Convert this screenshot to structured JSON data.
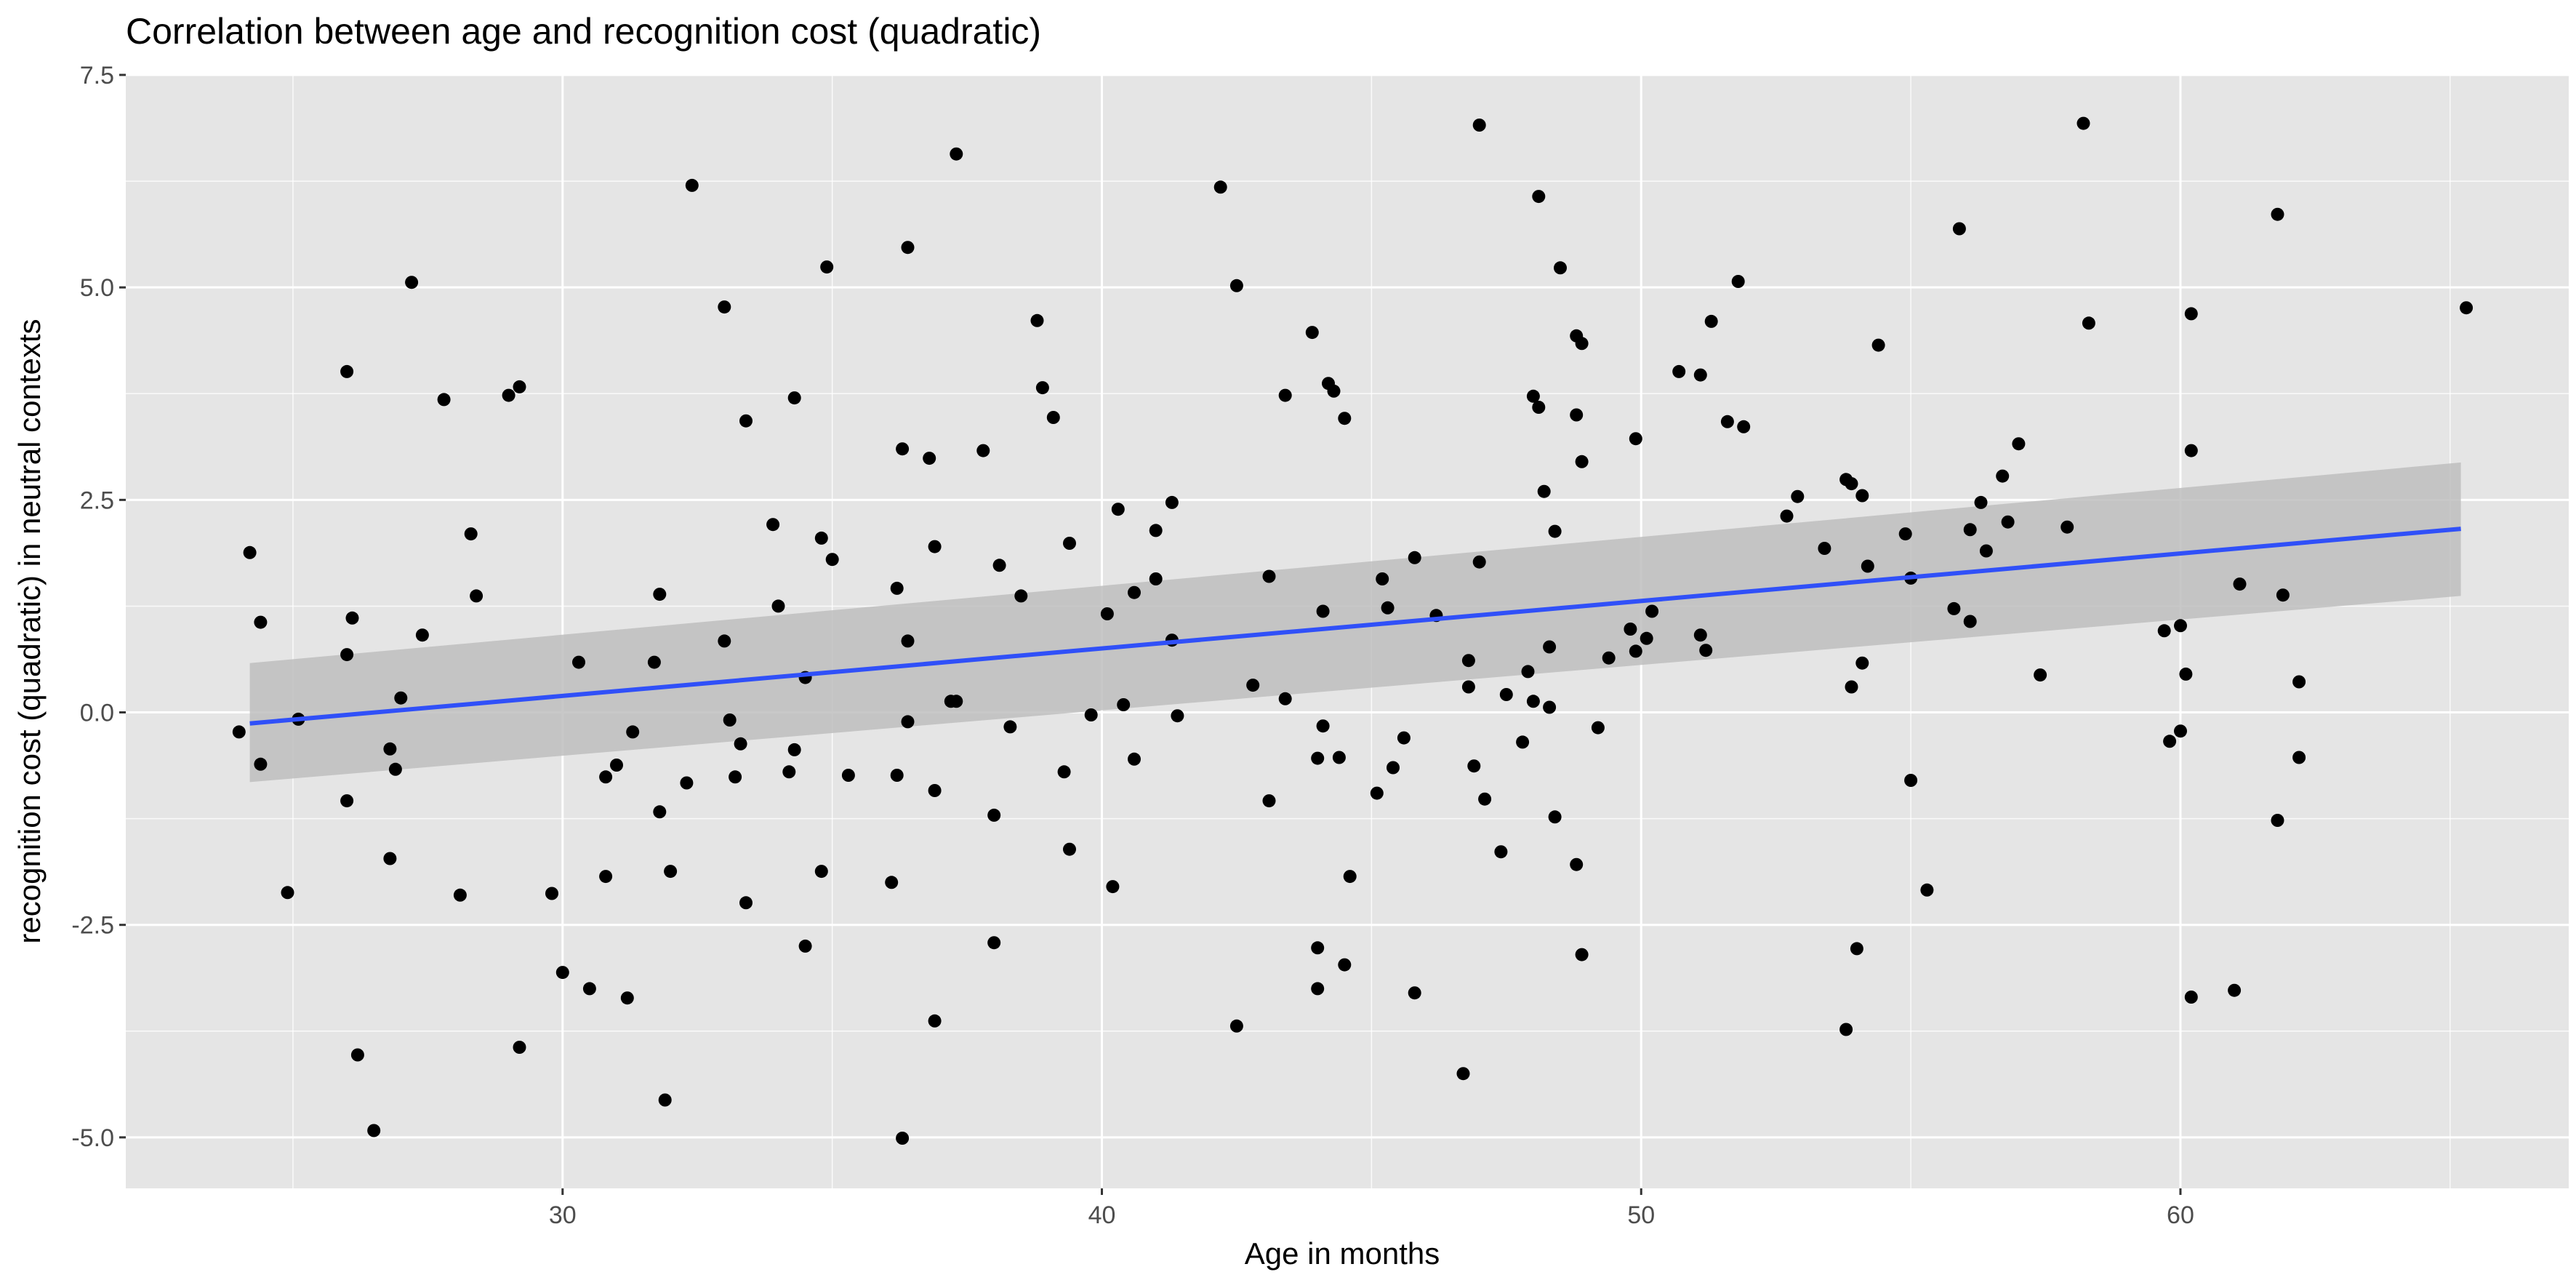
{
  "chart_data": {
    "type": "scatter",
    "title": "Correlation between age and recognition cost (quadratic)",
    "xlabel": "Age in months",
    "ylabel": "recognition cost (quadratic) in neutral contexts",
    "xlim": [
      21.9,
      67.2
    ],
    "ylim": [
      -5.6,
      7.5
    ],
    "x_ticks": [
      30,
      40,
      50,
      60
    ],
    "x_tick_labels": [
      "30",
      "40",
      "50",
      "60"
    ],
    "y_ticks": [
      -5,
      -2.5,
      0,
      2.5,
      5,
      7.5
    ],
    "y_tick_labels": [
      "-5.0",
      "-2.5",
      "0.0",
      "2.5",
      "5.0",
      "7.5"
    ],
    "grid": true,
    "legend": "none",
    "colors": {
      "panel_background": "#e5e5e5",
      "grid_major": "#ffffff",
      "points": "#000000",
      "fit_line": "#3050f8",
      "confidence_band": "#bebebe"
    },
    "fit": {
      "method": "linear regression with confidence band",
      "x": [
        24.2,
        65.2
      ],
      "y": [
        -0.13,
        2.16
      ],
      "band_lower": [
        -0.82,
        1.37
      ],
      "band_upper": [
        0.58,
        2.94
      ]
    },
    "points": [
      [
        24.0,
        -0.23
      ],
      [
        24.2,
        1.88
      ],
      [
        24.4,
        -0.61
      ],
      [
        24.4,
        1.06
      ],
      [
        24.9,
        -2.12
      ],
      [
        25.1,
        -0.08
      ],
      [
        26.0,
        4.01
      ],
      [
        26.0,
        -1.04
      ],
      [
        26.0,
        0.68
      ],
      [
        26.1,
        1.11
      ],
      [
        26.2,
        -4.03
      ],
      [
        26.5,
        -4.92
      ],
      [
        26.8,
        -1.72
      ],
      [
        26.8,
        -0.43
      ],
      [
        26.9,
        -0.67
      ],
      [
        27.0,
        0.17
      ],
      [
        27.2,
        5.06
      ],
      [
        27.4,
        0.91
      ],
      [
        27.8,
        3.68
      ],
      [
        28.1,
        -2.15
      ],
      [
        28.3,
        2.1
      ],
      [
        28.4,
        1.37
      ],
      [
        29.0,
        3.73
      ],
      [
        29.2,
        3.83
      ],
      [
        29.2,
        -3.94
      ],
      [
        29.8,
        -2.13
      ],
      [
        30.0,
        -3.06
      ],
      [
        30.3,
        0.59
      ],
      [
        30.5,
        -3.25
      ],
      [
        30.8,
        -1.93
      ],
      [
        30.8,
        -0.76
      ],
      [
        31.0,
        -0.62
      ],
      [
        31.2,
        -3.36
      ],
      [
        31.3,
        -0.23
      ],
      [
        31.7,
        0.59
      ],
      [
        31.8,
        1.39
      ],
      [
        31.8,
        -1.17
      ],
      [
        31.9,
        -4.56
      ],
      [
        32.0,
        -1.87
      ],
      [
        32.3,
        -0.83
      ],
      [
        32.4,
        6.2
      ],
      [
        33.0,
        0.84
      ],
      [
        33.0,
        4.77
      ],
      [
        33.1,
        -0.09
      ],
      [
        33.2,
        -0.76
      ],
      [
        33.3,
        -0.37
      ],
      [
        33.4,
        3.43
      ],
      [
        33.4,
        -2.24
      ],
      [
        33.9,
        2.21
      ],
      [
        34.0,
        1.25
      ],
      [
        34.2,
        -0.7
      ],
      [
        34.3,
        3.7
      ],
      [
        34.3,
        -0.44
      ],
      [
        34.5,
        0.41
      ],
      [
        34.5,
        -2.75
      ],
      [
        34.8,
        -1.87
      ],
      [
        34.8,
        2.05
      ],
      [
        34.9,
        5.24
      ],
      [
        35.0,
        1.8
      ],
      [
        35.3,
        -0.74
      ],
      [
        36.1,
        -2.0
      ],
      [
        36.2,
        1.46
      ],
      [
        36.2,
        -0.74
      ],
      [
        36.3,
        3.1
      ],
      [
        36.3,
        -5.01
      ],
      [
        36.4,
        5.47
      ],
      [
        36.4,
        0.84
      ],
      [
        36.4,
        -0.11
      ],
      [
        36.8,
        2.99
      ],
      [
        36.9,
        1.95
      ],
      [
        36.9,
        -0.92
      ],
      [
        36.9,
        -3.63
      ],
      [
        37.2,
        0.13
      ],
      [
        37.3,
        6.57
      ],
      [
        37.3,
        0.13
      ],
      [
        37.8,
        3.08
      ],
      [
        38.0,
        -1.21
      ],
      [
        38.0,
        -2.71
      ],
      [
        38.1,
        1.73
      ],
      [
        38.3,
        -0.17
      ],
      [
        38.5,
        1.37
      ],
      [
        38.8,
        4.61
      ],
      [
        38.9,
        3.82
      ],
      [
        39.1,
        3.47
      ],
      [
        39.3,
        -0.7
      ],
      [
        39.4,
        1.99
      ],
      [
        39.4,
        -1.61
      ],
      [
        39.8,
        -0.03
      ],
      [
        40.1,
        1.16
      ],
      [
        40.2,
        -2.05
      ],
      [
        40.3,
        2.39
      ],
      [
        40.4,
        0.09
      ],
      [
        40.6,
        -0.55
      ],
      [
        40.6,
        1.41
      ],
      [
        41.0,
        2.14
      ],
      [
        41.0,
        1.57
      ],
      [
        41.3,
        2.47
      ],
      [
        41.4,
        -0.04
      ],
      [
        41.3,
        0.85
      ],
      [
        42.2,
        6.18
      ],
      [
        42.5,
        5.02
      ],
      [
        42.5,
        -3.69
      ],
      [
        42.8,
        0.32
      ],
      [
        43.1,
        -1.04
      ],
      [
        43.1,
        1.6
      ],
      [
        43.4,
        0.16
      ],
      [
        43.4,
        3.73
      ],
      [
        43.9,
        4.47
      ],
      [
        44.0,
        -0.54
      ],
      [
        44.0,
        -2.77
      ],
      [
        44.0,
        -3.25
      ],
      [
        44.1,
        -0.16
      ],
      [
        44.1,
        1.19
      ],
      [
        44.2,
        3.87
      ],
      [
        44.3,
        3.78
      ],
      [
        44.4,
        -0.53
      ],
      [
        44.5,
        3.46
      ],
      [
        44.5,
        -2.97
      ],
      [
        44.6,
        -1.93
      ],
      [
        45.1,
        -0.95
      ],
      [
        45.2,
        1.57
      ],
      [
        45.3,
        1.23
      ],
      [
        45.4,
        -0.65
      ],
      [
        45.6,
        -0.3
      ],
      [
        45.8,
        1.82
      ],
      [
        45.8,
        -3.3
      ],
      [
        46.2,
        1.14
      ],
      [
        46.7,
        -4.25
      ],
      [
        46.8,
        0.61
      ],
      [
        46.8,
        0.3
      ],
      [
        46.9,
        -0.63
      ],
      [
        47.0,
        6.91
      ],
      [
        47.0,
        1.77
      ],
      [
        47.1,
        -1.02
      ],
      [
        47.4,
        -1.64
      ],
      [
        47.5,
        0.21
      ],
      [
        47.8,
        -0.35
      ],
      [
        47.9,
        0.48
      ],
      [
        48.0,
        3.72
      ],
      [
        48.0,
        0.13
      ],
      [
        48.1,
        6.07
      ],
      [
        48.1,
        3.59
      ],
      [
        48.2,
        2.6
      ],
      [
        48.3,
        0.77
      ],
      [
        48.3,
        0.06
      ],
      [
        48.4,
        2.13
      ],
      [
        48.4,
        -1.23
      ],
      [
        48.5,
        5.23
      ],
      [
        48.8,
        4.43
      ],
      [
        48.8,
        3.5
      ],
      [
        48.8,
        -1.79
      ],
      [
        48.9,
        4.34
      ],
      [
        48.9,
        2.95
      ],
      [
        48.9,
        -2.85
      ],
      [
        49.2,
        -0.18
      ],
      [
        49.4,
        0.64
      ],
      [
        49.8,
        0.98
      ],
      [
        49.9,
        3.22
      ],
      [
        49.9,
        0.72
      ],
      [
        50.1,
        0.87
      ],
      [
        50.2,
        1.19
      ],
      [
        50.7,
        4.01
      ],
      [
        51.1,
        3.97
      ],
      [
        51.1,
        0.91
      ],
      [
        51.2,
        0.73
      ],
      [
        51.3,
        4.6
      ],
      [
        51.6,
        3.42
      ],
      [
        51.8,
        5.07
      ],
      [
        51.9,
        3.36
      ],
      [
        52.7,
        2.31
      ],
      [
        52.9,
        2.54
      ],
      [
        53.4,
        1.93
      ],
      [
        53.8,
        2.74
      ],
      [
        53.8,
        -3.73
      ],
      [
        53.9,
        2.69
      ],
      [
        53.9,
        0.3
      ],
      [
        54.1,
        2.55
      ],
      [
        54.0,
        -2.78
      ],
      [
        54.1,
        0.58
      ],
      [
        54.2,
        1.72
      ],
      [
        54.4,
        4.32
      ],
      [
        54.9,
        2.1
      ],
      [
        55.0,
        1.58
      ],
      [
        55.0,
        -0.8
      ],
      [
        55.3,
        -2.09
      ],
      [
        55.8,
        1.22
      ],
      [
        55.9,
        5.69
      ],
      [
        56.1,
        2.15
      ],
      [
        56.1,
        1.07
      ],
      [
        56.3,
        2.47
      ],
      [
        56.4,
        1.9
      ],
      [
        56.7,
        2.78
      ],
      [
        56.8,
        2.24
      ],
      [
        57.0,
        3.16
      ],
      [
        57.4,
        0.44
      ],
      [
        57.9,
        2.18
      ],
      [
        58.2,
        6.93
      ],
      [
        58.3,
        4.58
      ],
      [
        59.7,
        0.96
      ],
      [
        59.8,
        -0.34
      ],
      [
        60.0,
        1.02
      ],
      [
        60.0,
        -0.22
      ],
      [
        60.1,
        0.45
      ],
      [
        60.2,
        4.69
      ],
      [
        60.2,
        3.08
      ],
      [
        60.2,
        -3.35
      ],
      [
        61.0,
        -3.27
      ],
      [
        61.1,
        1.51
      ],
      [
        61.8,
        5.86
      ],
      [
        61.8,
        -1.27
      ],
      [
        61.9,
        1.38
      ],
      [
        62.2,
        0.36
      ],
      [
        62.2,
        -0.53
      ],
      [
        65.3,
        4.76
      ]
    ]
  }
}
